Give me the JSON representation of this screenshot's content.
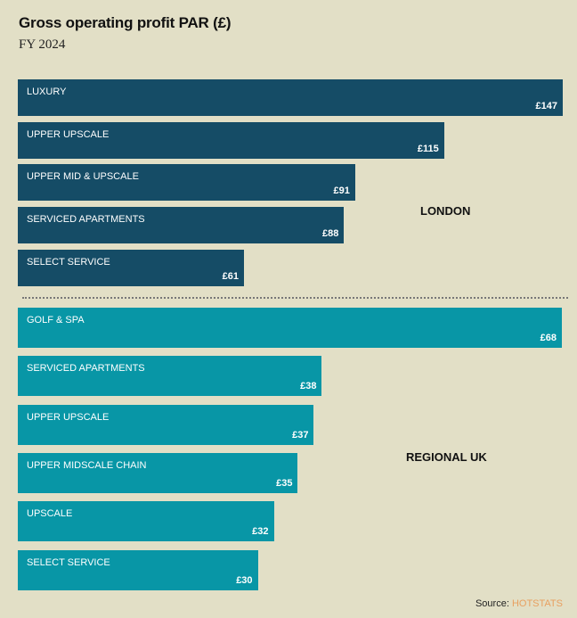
{
  "chart_data": {
    "type": "bar",
    "orientation": "horizontal",
    "title": "Gross operating profit PAR (£)",
    "subtitle": "FY 2024",
    "groups": [
      {
        "name": "LONDON",
        "color": "#154c66",
        "categories": [
          "LUXURY",
          "UPPER UPSCALE",
          "UPPER MID & UPSCALE",
          "SERVICED APARTMENTS",
          "SELECT SERVICE"
        ],
        "values": [
          147,
          115,
          91,
          88,
          61
        ],
        "value_labels": [
          "£147",
          "£115",
          "£91",
          "£88",
          "£61"
        ]
      },
      {
        "name": "REGIONAL UK",
        "color": "#0896a6",
        "categories": [
          "GOLF & SPA",
          "SERVICED APARTMENTS",
          "UPPER UPSCALE",
          "UPPER MIDSCALE CHAIN",
          "UPSCALE",
          "SELECT SERVICE"
        ],
        "values": [
          68,
          38,
          37,
          35,
          32,
          30
        ],
        "value_labels": [
          "£68",
          "£38",
          "£37",
          "£35",
          "£32",
          "£30"
        ]
      }
    ],
    "source_prefix": "Source:",
    "source_name": "HOTSTATS",
    "source_color": "#e8a060"
  }
}
